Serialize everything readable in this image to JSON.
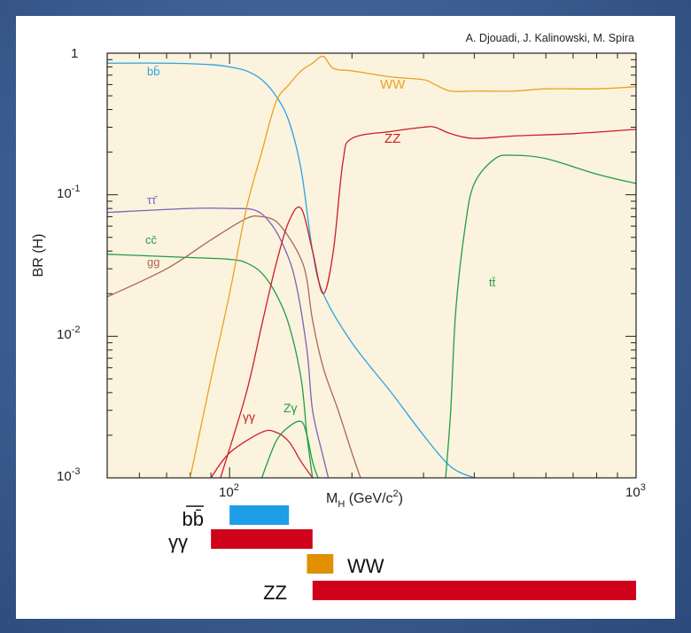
{
  "chart_data": {
    "type": "line",
    "credit": "A. Djouadi,  J. Kalinowski,  M. Spira",
    "xlabel_main": "M",
    "xlabel_sub": "H",
    "xlabel_rest": "  (GeV/c",
    "xlabel_sup": "2",
    "xlabel_end": ")",
    "ylabel": "BR (H)",
    "x_scale": "log",
    "y_scale": "log",
    "xlim": [
      50,
      1000
    ],
    "ylim": [
      0.001,
      1
    ],
    "x_ticks": [
      {
        "base": "10",
        "exp": "2"
      },
      {
        "base": "10",
        "exp": "3"
      }
    ],
    "y_ticks": [
      {
        "base": "1",
        "exp": ""
      },
      {
        "base": "10",
        "exp": "-1"
      },
      {
        "base": "10",
        "exp": "-2"
      },
      {
        "base": "10",
        "exp": "-3"
      }
    ],
    "series": [
      {
        "name": "bb̄",
        "color": "#2aa3e6",
        "points": [
          [
            50,
            0.85
          ],
          [
            70,
            0.85
          ],
          [
            90,
            0.83
          ],
          [
            100,
            0.8
          ],
          [
            110,
            0.75
          ],
          [
            120,
            0.65
          ],
          [
            130,
            0.5
          ],
          [
            140,
            0.33
          ],
          [
            150,
            0.15
          ],
          [
            160,
            0.04
          ],
          [
            170,
            0.02
          ],
          [
            200,
            0.009
          ],
          [
            250,
            0.004
          ],
          [
            300,
            0.002
          ],
          [
            350,
            0.0012
          ],
          [
            400,
            0.001
          ]
        ]
      },
      {
        "name": "ττ̄",
        "color": "#7e60b8",
        "points": [
          [
            50,
            0.075
          ],
          [
            80,
            0.08
          ],
          [
            100,
            0.08
          ],
          [
            115,
            0.078
          ],
          [
            125,
            0.065
          ],
          [
            135,
            0.045
          ],
          [
            145,
            0.025
          ],
          [
            155,
            0.008
          ],
          [
            160,
            0.003
          ],
          [
            170,
            0.0014
          ],
          [
            175,
            0.001
          ]
        ]
      },
      {
        "name": "cc̄",
        "color": "#1f9e46",
        "points": [
          [
            50,
            0.038
          ],
          [
            80,
            0.036
          ],
          [
            100,
            0.035
          ],
          [
            110,
            0.033
          ],
          [
            120,
            0.028
          ],
          [
            130,
            0.02
          ],
          [
            140,
            0.012
          ],
          [
            150,
            0.005
          ],
          [
            155,
            0.002
          ],
          [
            160,
            0.001
          ]
        ]
      },
      {
        "name": "gg",
        "color": "#a8685a",
        "points": [
          [
            50,
            0.019
          ],
          [
            70,
            0.03
          ],
          [
            90,
            0.048
          ],
          [
            110,
            0.068
          ],
          [
            120,
            0.07
          ],
          [
            130,
            0.065
          ],
          [
            140,
            0.05
          ],
          [
            150,
            0.035
          ],
          [
            155,
            0.025
          ],
          [
            160,
            0.013
          ],
          [
            170,
            0.006
          ],
          [
            185,
            0.003
          ],
          [
            200,
            0.0015
          ],
          [
            210,
            0.001
          ]
        ]
      },
      {
        "name": "WW",
        "color": "#eba122",
        "points": [
          [
            80,
            0.001
          ],
          [
            90,
            0.005
          ],
          [
            100,
            0.02
          ],
          [
            110,
            0.08
          ],
          [
            120,
            0.2
          ],
          [
            130,
            0.45
          ],
          [
            140,
            0.6
          ],
          [
            150,
            0.75
          ],
          [
            160,
            0.85
          ],
          [
            170,
            0.95
          ],
          [
            180,
            0.78
          ],
          [
            200,
            0.75
          ],
          [
            250,
            0.68
          ],
          [
            300,
            0.65
          ],
          [
            320,
            0.6
          ],
          [
            350,
            0.54
          ],
          [
            400,
            0.54
          ],
          [
            500,
            0.54
          ],
          [
            600,
            0.56
          ],
          [
            800,
            0.56
          ],
          [
            1000,
            0.58
          ]
        ]
      },
      {
        "name": "ZZ",
        "color": "#cf1a2a",
        "points": [
          [
            95,
            0.001
          ],
          [
            110,
            0.004
          ],
          [
            120,
            0.012
          ],
          [
            130,
            0.032
          ],
          [
            140,
            0.065
          ],
          [
            150,
            0.08
          ],
          [
            160,
            0.04
          ],
          [
            170,
            0.02
          ],
          [
            180,
            0.04
          ],
          [
            190,
            0.17
          ],
          [
            200,
            0.25
          ],
          [
            250,
            0.28
          ],
          [
            300,
            0.3
          ],
          [
            320,
            0.3
          ],
          [
            350,
            0.27
          ],
          [
            400,
            0.25
          ],
          [
            500,
            0.26
          ],
          [
            700,
            0.27
          ],
          [
            1000,
            0.29
          ]
        ]
      },
      {
        "name": "tt̄",
        "color": "#1f9e46",
        "points": [
          [
            340,
            0.001
          ],
          [
            350,
            0.003
          ],
          [
            360,
            0.015
          ],
          [
            380,
            0.06
          ],
          [
            400,
            0.12
          ],
          [
            450,
            0.18
          ],
          [
            500,
            0.19
          ],
          [
            600,
            0.18
          ],
          [
            800,
            0.14
          ],
          [
            1000,
            0.12
          ]
        ]
      },
      {
        "name": "γγ",
        "color": "#cf1a2a",
        "points": [
          [
            90,
            0.001
          ],
          [
            100,
            0.0015
          ],
          [
            120,
            0.0021
          ],
          [
            130,
            0.0021
          ],
          [
            140,
            0.0018
          ],
          [
            150,
            0.0013
          ],
          [
            160,
            0.001
          ]
        ]
      },
      {
        "name": "Zγ",
        "color": "#1f9e46",
        "points": [
          [
            120,
            0.001
          ],
          [
            130,
            0.0018
          ],
          [
            140,
            0.0023
          ],
          [
            150,
            0.0025
          ],
          [
            155,
            0.002
          ],
          [
            160,
            0.0013
          ],
          [
            165,
            0.001
          ]
        ]
      }
    ],
    "curve_labels": [
      "bb̄",
      "WW",
      "ZZ",
      "ττ̄",
      "cc̄",
      "gg",
      "tt̄",
      "γγ",
      "Zγ"
    ],
    "discovery_bars": [
      {
        "label": "bb̄",
        "color": "#1d9ee6",
        "range": [
          100,
          140
        ]
      },
      {
        "label": "γγ",
        "color": "#d0021b",
        "range": [
          90,
          160
        ]
      },
      {
        "label": "WW",
        "color": "#e09000",
        "range": [
          155,
          180
        ]
      },
      {
        "label": "ZZ",
        "color": "#d0021b",
        "range": [
          160,
          1000
        ]
      }
    ]
  }
}
